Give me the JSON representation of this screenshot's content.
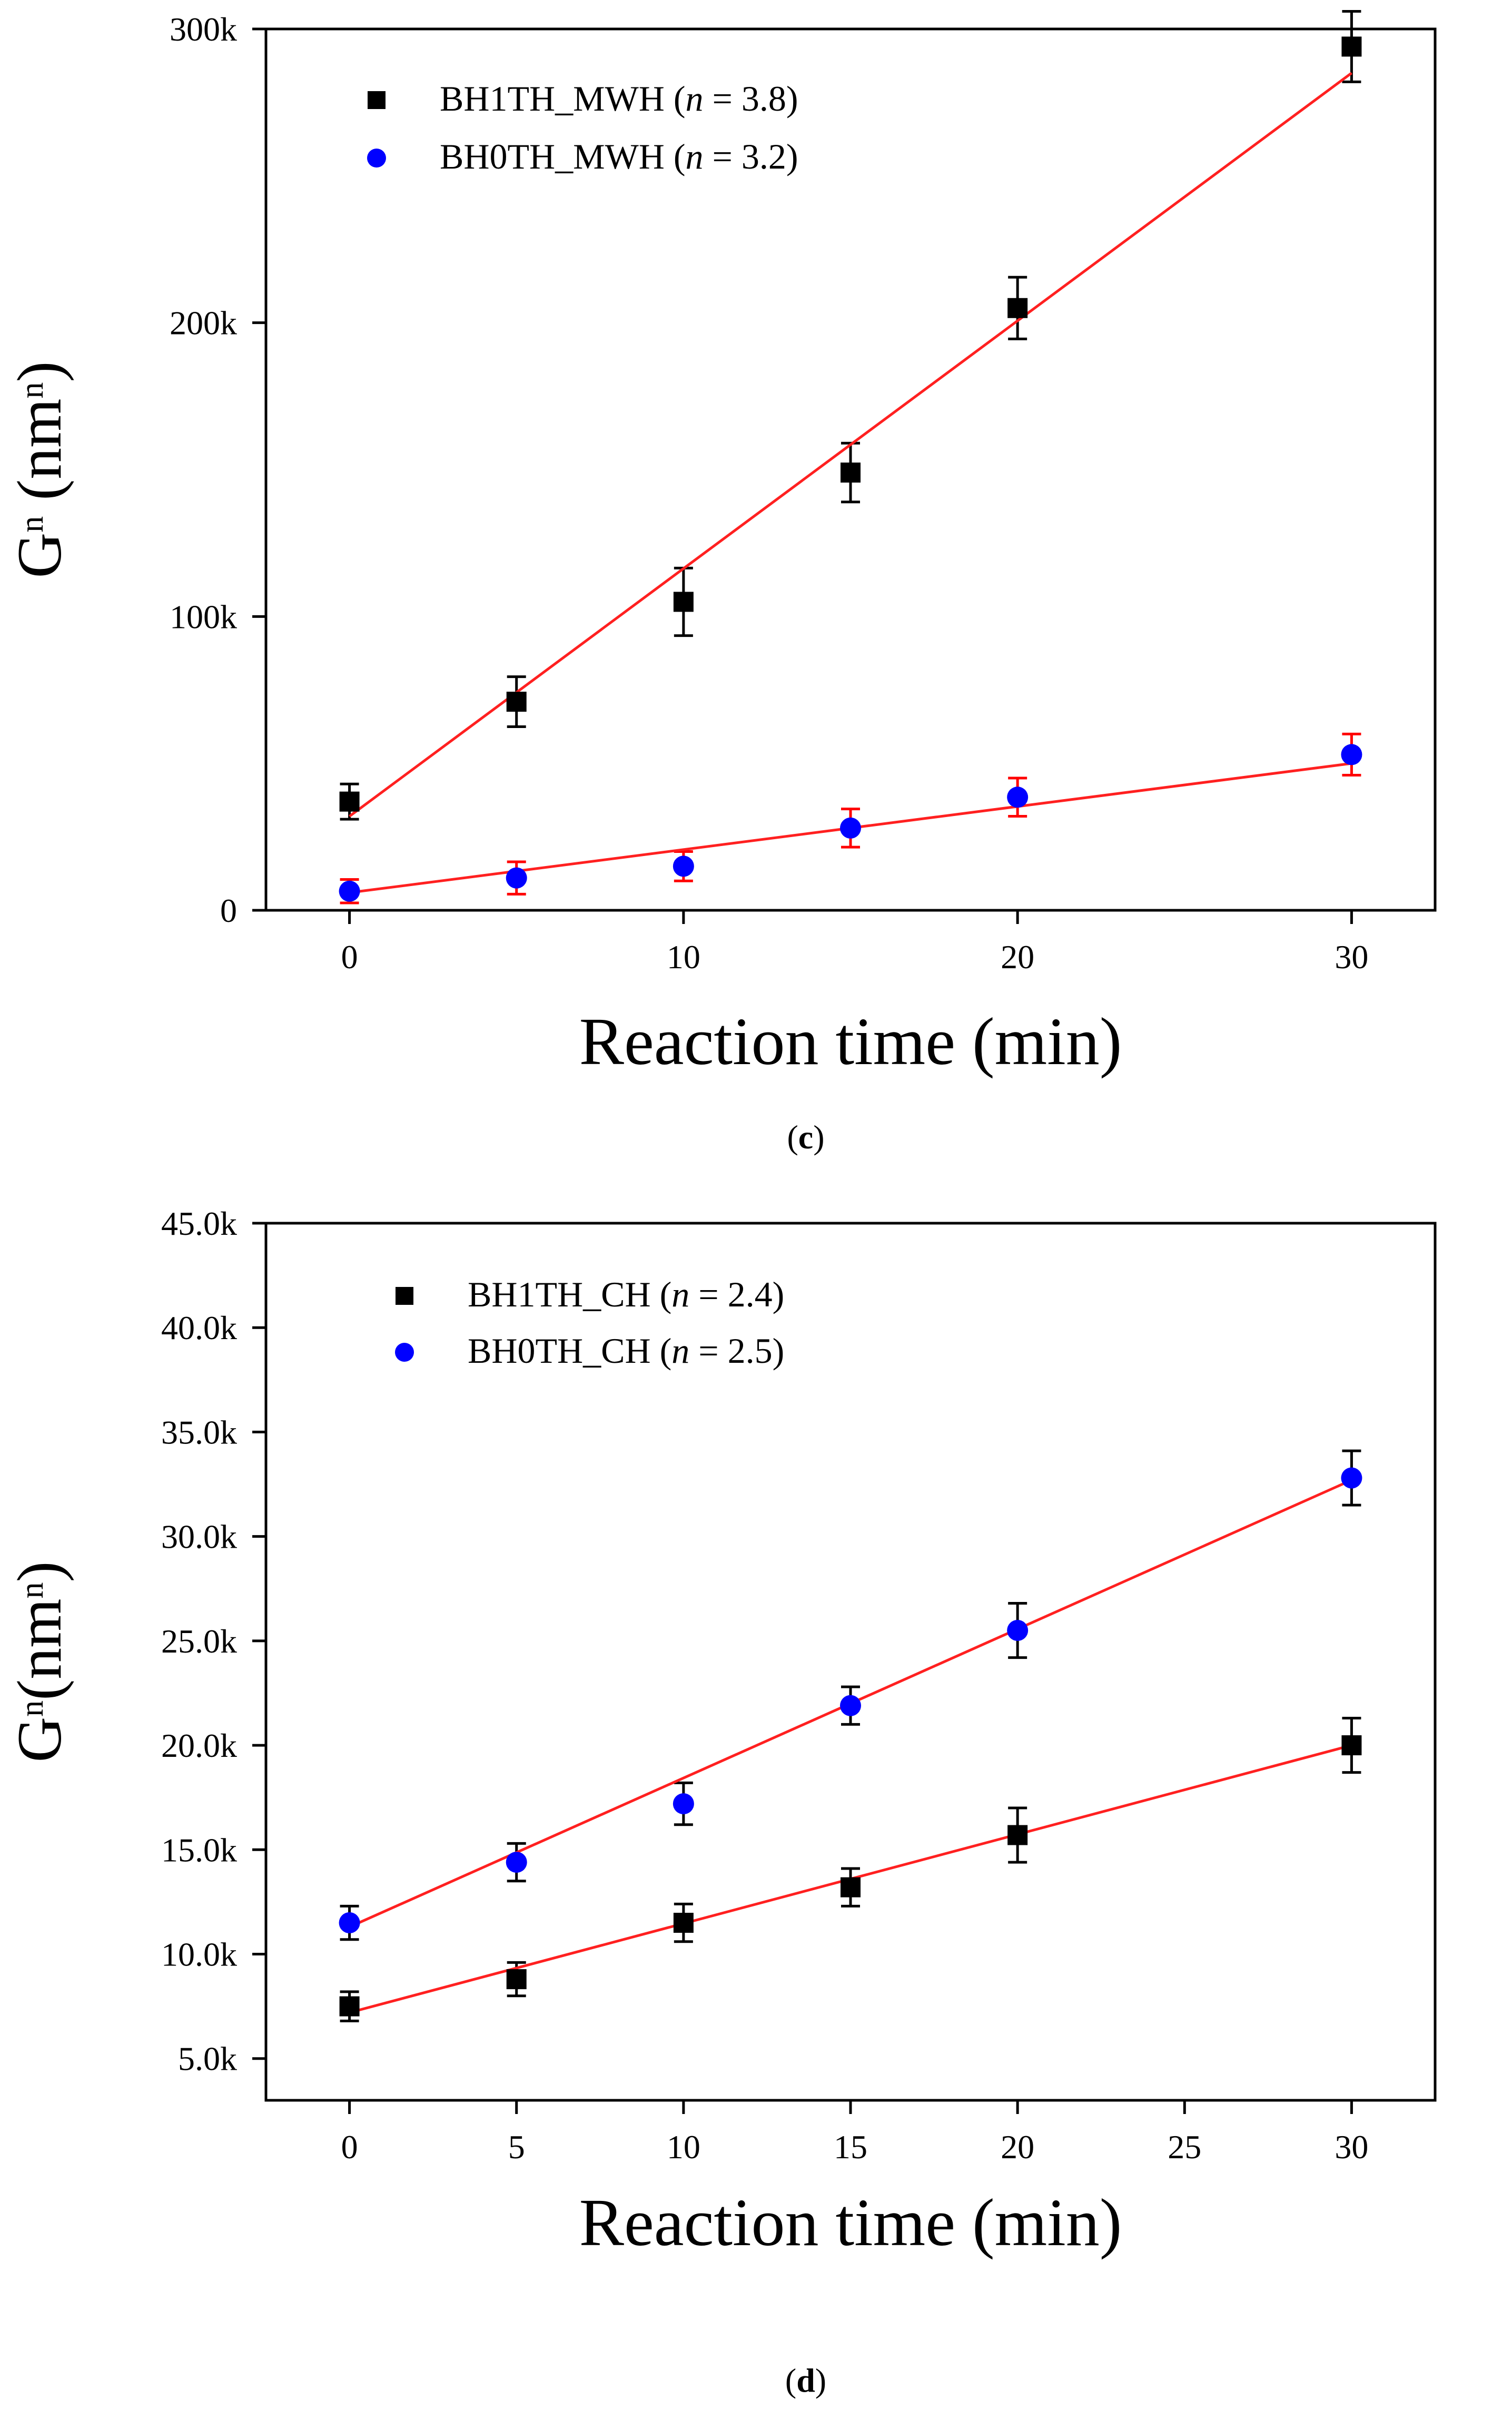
{
  "chart_data": [
    {
      "panel_label": "c",
      "type": "scatter",
      "xlabel": "Reaction time (min)",
      "ylabel": {
        "base": "G",
        "sup": "n",
        "unit_prefix": " (nm",
        "unit_sup": "n",
        "unit_suffix": ")"
      },
      "xlim": [
        -2.5,
        32.5
      ],
      "ylim": [
        0,
        300000
      ],
      "xticks": [
        0,
        10,
        20,
        30
      ],
      "xtick_labels": [
        "0",
        "10",
        "20",
        "30"
      ],
      "yticks": [
        0,
        100000,
        200000,
        300000
      ],
      "ytick_labels": [
        "0",
        "100k",
        "200k",
        "300k"
      ],
      "fit_color": "#ff2020",
      "legend_position": "top-left",
      "series": [
        {
          "name": "BH1TH_MWH",
          "legend_label": "BH1TH_MWH (",
          "n_label": "n",
          "n_value": " = 3.8)",
          "marker": "square",
          "color": "#000000",
          "errorbar_color": "#000000",
          "x": [
            0,
            5,
            10,
            15,
            20,
            30
          ],
          "y": [
            37000,
            71000,
            105000,
            149000,
            205000,
            294000
          ],
          "err": [
            6000,
            8500,
            11500,
            10000,
            10500,
            12000
          ],
          "fit": {
            "x": [
              0,
              30
            ],
            "y": [
              32000,
              285000
            ]
          }
        },
        {
          "name": "BH0TH_MWH",
          "legend_label": "BH0TH_MWH (",
          "n_label": "n",
          "n_value": " = 3.2)",
          "marker": "circle",
          "color": "#0000ff",
          "errorbar_color": "#ff0000",
          "x": [
            0,
            5,
            10,
            15,
            20,
            30
          ],
          "y": [
            6500,
            11000,
            15000,
            28000,
            38500,
            53000
          ],
          "err": [
            4000,
            5500,
            5000,
            6500,
            6500,
            7000
          ],
          "fit": {
            "x": [
              0,
              30
            ],
            "y": [
              6000,
              50000
            ]
          }
        }
      ]
    },
    {
      "panel_label": "d",
      "type": "scatter",
      "xlabel": "Reaction time (min)",
      "ylabel": {
        "base": "G",
        "sup": "n",
        "unit_prefix": "(nm",
        "unit_sup": "n",
        "unit_suffix": ")"
      },
      "xlim": [
        -2.5,
        32.5
      ],
      "ylim": [
        3000,
        45000
      ],
      "xticks": [
        0,
        5,
        10,
        15,
        20,
        25,
        30
      ],
      "xtick_labels": [
        "0",
        "5",
        "10",
        "15",
        "20",
        "25",
        "30"
      ],
      "yticks": [
        5000,
        10000,
        15000,
        20000,
        25000,
        30000,
        35000,
        40000,
        45000
      ],
      "ytick_labels": [
        "5.0k",
        "10.0k",
        "15.0k",
        "20.0k",
        "25.0k",
        "30.0k",
        "35.0k",
        "40.0k",
        "45.0k"
      ],
      "fit_color": "#ff2020",
      "legend_position": "top-left",
      "series": [
        {
          "name": "BH1TH_CH",
          "legend_label": "BH1TH_CH (",
          "n_label": "n",
          "n_value": " = 2.4)",
          "marker": "square",
          "color": "#000000",
          "errorbar_color": "#000000",
          "x": [
            0,
            5,
            10,
            15,
            20,
            30
          ],
          "y": [
            7500,
            8800,
            11500,
            13200,
            15700,
            20000
          ],
          "err": [
            700,
            800,
            900,
            900,
            1300,
            1300
          ],
          "fit": {
            "x": [
              0,
              30
            ],
            "y": [
              7200,
              20000
            ]
          }
        },
        {
          "name": "BH0TH_CH",
          "legend_label": "BH0TH_CH (",
          "n_label": "n",
          "n_value": " = 2.5)",
          "marker": "circle",
          "color": "#0000ff",
          "errorbar_color": "#000000",
          "x": [
            0,
            5,
            10,
            15,
            20,
            30
          ],
          "y": [
            11500,
            14400,
            17200,
            21900,
            25500,
            32800
          ],
          "err": [
            800,
            900,
            1000,
            900,
            1300,
            1300
          ],
          "fit": {
            "x": [
              0,
              30
            ],
            "y": [
              11300,
              32700
            ]
          }
        }
      ]
    }
  ]
}
